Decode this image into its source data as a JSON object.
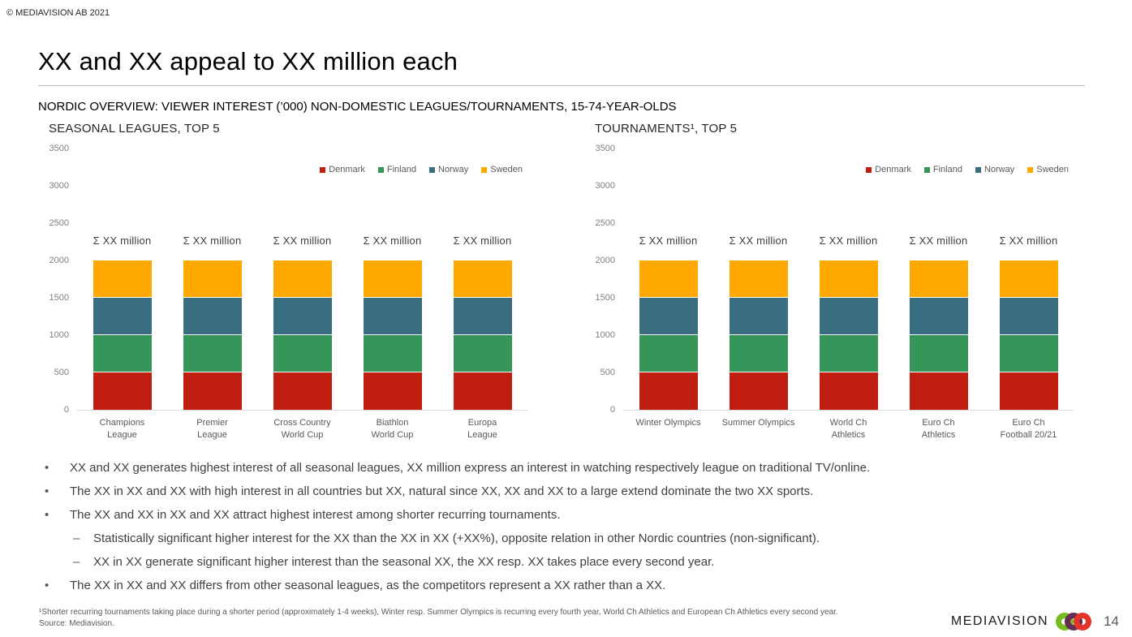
{
  "slide": {
    "copyright": "© MEDIAVISION AB 2021",
    "title": "XX and XX appeal to XX million each",
    "subtitle": "NORDIC OVERVIEW: VIEWER INTEREST (’000) NON-DOMESTIC LEAGUES/TOURNAMENTS, 15-74-YEAR-OLDS",
    "page_number": "14",
    "logo_text": "MEDIAVISION"
  },
  "colors": {
    "denmark": "#BF1E10",
    "finland": "#369659",
    "norway": "#386E80",
    "sweden": "#FFA900",
    "logo_green": "#76BC21",
    "logo_purple": "#652D53",
    "logo_red": "#E5332A"
  },
  "chart_data": [
    {
      "type": "bar",
      "stacked": true,
      "title": "SEASONAL LEAGUES, TOP 5",
      "categories": [
        "Champions\nLeague",
        "Premier\nLeague",
        "Cross Country\nWorld Cup",
        "Biathlon\nWorld Cup",
        "Europa\nLeague"
      ],
      "series": [
        {
          "name": "Denmark",
          "color": "#BF1E10",
          "values": [
            500,
            500,
            500,
            500,
            500
          ]
        },
        {
          "name": "Finland",
          "color": "#369659",
          "values": [
            500,
            500,
            500,
            500,
            500
          ]
        },
        {
          "name": "Norway",
          "color": "#386E80",
          "values": [
            500,
            500,
            500,
            500,
            500
          ]
        },
        {
          "name": "Sweden",
          "color": "#FFA900",
          "values": [
            500,
            500,
            500,
            500,
            500
          ]
        }
      ],
      "bar_total_label": "Σ XX million",
      "xlabel": "",
      "ylabel": "",
      "ylim": [
        0,
        3500
      ],
      "yticks": [
        0,
        500,
        1000,
        1500,
        2000,
        2500,
        3000,
        3500
      ],
      "grid": false,
      "legend_position": "top-right"
    },
    {
      "type": "bar",
      "stacked": true,
      "title": "TOURNAMENTS¹, TOP 5",
      "categories": [
        "Winter Olympics",
        "Summer Olympics",
        "World Ch\nAthletics",
        "Euro Ch\nAthletics",
        "Euro Ch\nFootball 20/21"
      ],
      "series": [
        {
          "name": "Denmark",
          "color": "#BF1E10",
          "values": [
            500,
            500,
            500,
            500,
            500
          ]
        },
        {
          "name": "Finland",
          "color": "#369659",
          "values": [
            500,
            500,
            500,
            500,
            500
          ]
        },
        {
          "name": "Norway",
          "color": "#386E80",
          "values": [
            500,
            500,
            500,
            500,
            500
          ]
        },
        {
          "name": "Sweden",
          "color": "#FFA900",
          "values": [
            500,
            500,
            500,
            500,
            500
          ]
        }
      ],
      "bar_total_label": "Σ XX million",
      "xlabel": "",
      "ylabel": "",
      "ylim": [
        0,
        3500
      ],
      "yticks": [
        0,
        500,
        1000,
        1500,
        2000,
        2500,
        3000,
        3500
      ],
      "grid": false,
      "legend_position": "top-right"
    }
  ],
  "bullets": [
    {
      "level": 1,
      "text": "XX and XX generates highest interest of all seasonal leagues, XX million express an interest in watching respectively league on traditional TV/online."
    },
    {
      "level": 1,
      "text": "The XX in XX and XX with high interest in all countries but XX, natural since XX, XX and XX to a large extend dominate the two XX sports."
    },
    {
      "level": 1,
      "text": "The XX and XX in XX and XX attract highest interest among shorter recurring tournaments."
    },
    {
      "level": 2,
      "text": "Statistically significant higher interest for the XX than the XX in XX (+XX%), opposite relation in other Nordic countries (non-significant)."
    },
    {
      "level": 2,
      "text": "XX in XX generate significant higher interest than the seasonal XX, the XX resp. XX takes place every second year."
    },
    {
      "level": 1,
      "text": "The XX in XX and XX differs from other seasonal leagues, as the competitors represent a XX rather than a XX."
    }
  ],
  "footer": {
    "footnote": "¹Shorter recurring tournaments taking place during a shorter period (approximately 1-4 weeks), Winter resp. Summer Olympics is recurring every fourth year, World Ch Athletics and European Ch Athletics every second year.",
    "source": "Source: Mediavision."
  }
}
